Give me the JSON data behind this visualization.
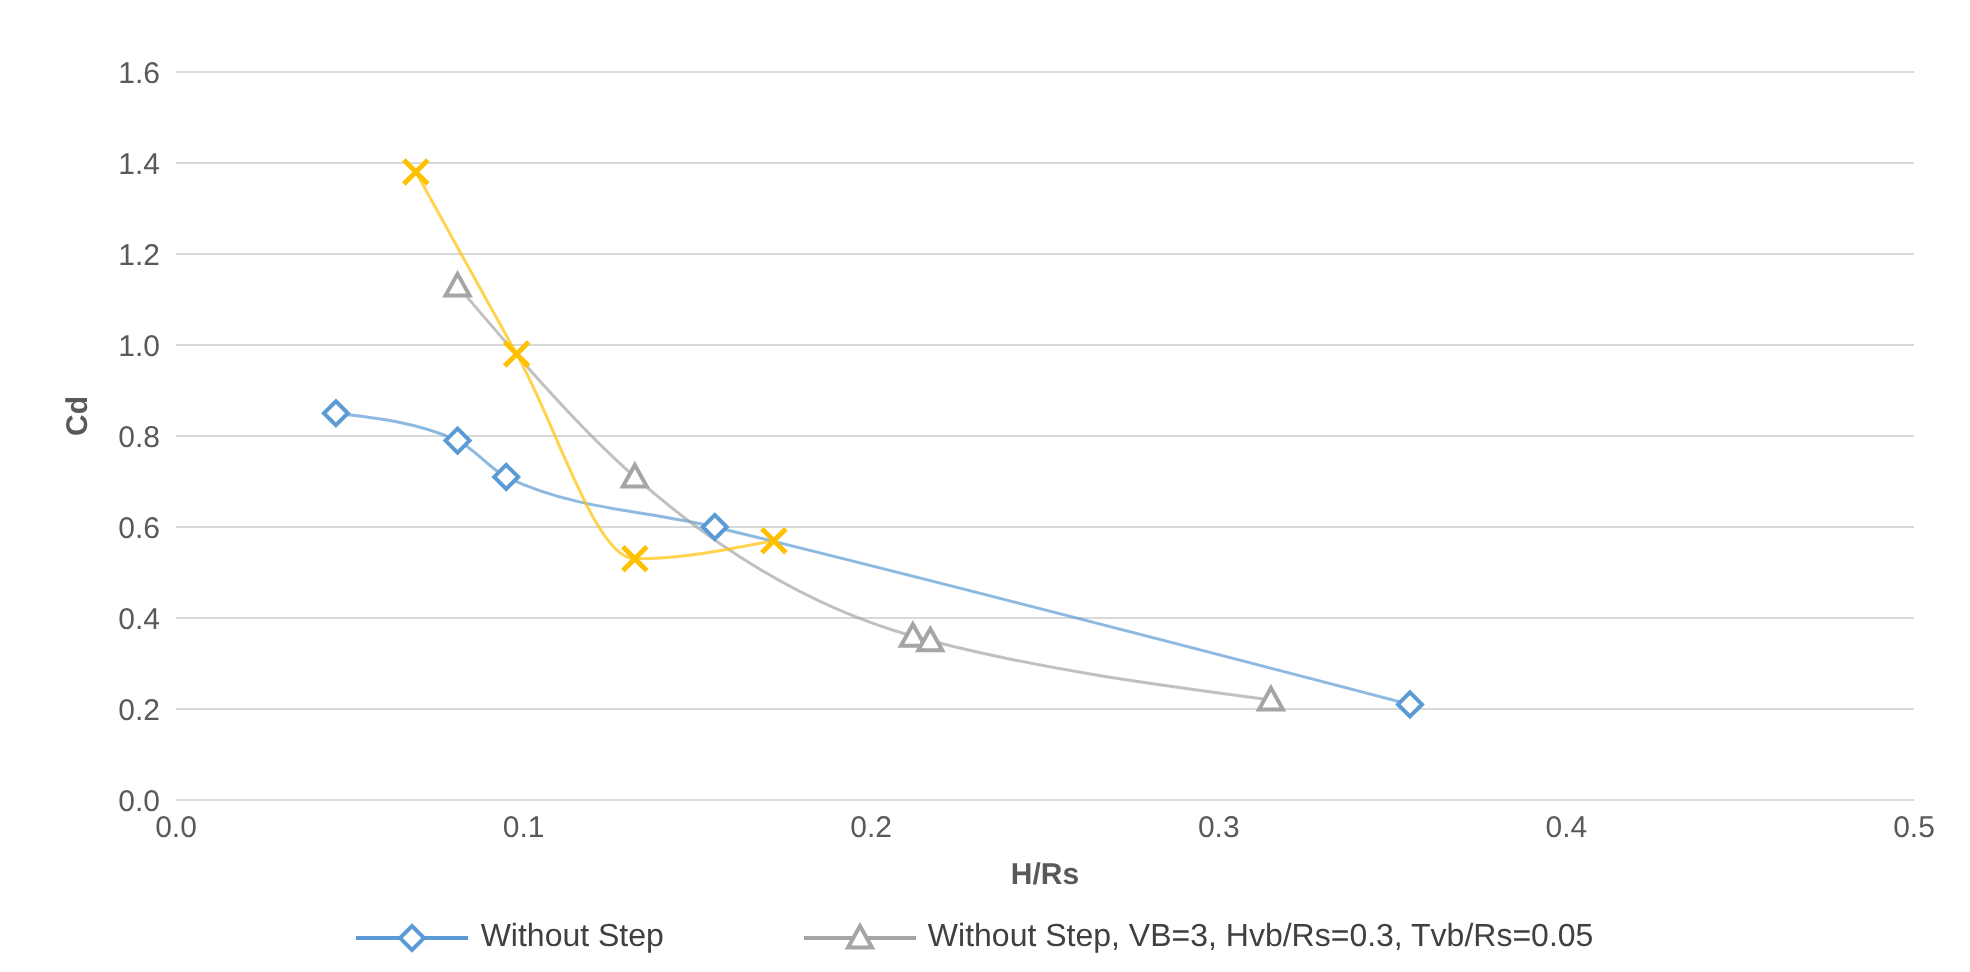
{
  "chart_data": {
    "type": "line",
    "xlabel": "H/Rs",
    "ylabel": "Cd",
    "xlim": [
      0,
      0.5
    ],
    "xticks": [
      {
        "value": 0,
        "label": "0.0"
      },
      0.1,
      0.2,
      0.3,
      0.4,
      0.5
    ],
    "ylim": [
      0,
      1.6
    ],
    "yticks": [
      {
        "value": 0,
        "label": "0.0"
      },
      0.2,
      0.4,
      0.6,
      0.8,
      {
        "value": 1,
        "label": "1.0"
      },
      1.2,
      1.4,
      1.6
    ],
    "grid": "y",
    "legend": "bottom",
    "series": [
      {
        "name": "Without Step",
        "color": "#5b9bd5",
        "marker": "diamond",
        "x": [
          0.046,
          0.081,
          0.095,
          0.155,
          0.355
        ],
        "values": [
          0.85,
          0.79,
          0.71,
          0.6,
          0.21
        ]
      },
      {
        "name": "Without Step, VB=3, Hvb/Rs=0.3, Tvb/Rs=0.05",
        "color": "#a5a5a5",
        "marker": "triangle",
        "x": [
          0.081,
          0.132,
          0.212,
          0.217,
          0.315
        ],
        "values": [
          1.13,
          0.71,
          0.36,
          0.35,
          0.22
        ]
      },
      {
        "color": "#ffc000",
        "marker": "cross",
        "x": [
          0.069,
          0.098,
          0.132,
          0.172
        ],
        "values": [
          1.38,
          0.98,
          0.53,
          0.57
        ]
      }
    ]
  }
}
